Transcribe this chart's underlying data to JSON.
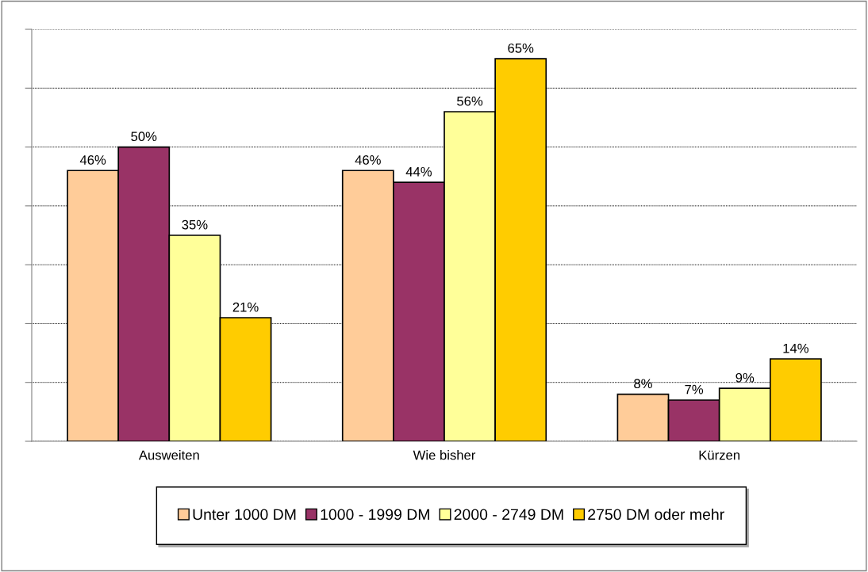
{
  "chart_data": {
    "type": "bar",
    "categories": [
      "Ausweiten",
      "Wie bisher",
      "Kürzen"
    ],
    "series": [
      {
        "name": "Unter 1000 DM",
        "color": "#ffcc99",
        "values": [
          46,
          46,
          8
        ],
        "value_labels": [
          "46%",
          "46%",
          "8%"
        ]
      },
      {
        "name": "1000 - 1999 DM",
        "color": "#993366",
        "values": [
          50,
          44,
          7
        ],
        "value_labels": [
          "50%",
          "44%",
          "7%"
        ]
      },
      {
        "name": "2000 - 2749 DM",
        "color": "#ffff99",
        "values": [
          35,
          56,
          9
        ],
        "value_labels": [
          "35%",
          "56%",
          "9%"
        ]
      },
      {
        "name": "2750 DM oder mehr",
        "color": "#ffcc00",
        "values": [
          21,
          65,
          14
        ],
        "value_labels": [
          "21%",
          "65%",
          "14%"
        ]
      }
    ],
    "ylim": [
      0,
      70
    ],
    "yticks": [
      {
        "value": 0,
        "label": null
      },
      {
        "value": 10,
        "label": null
      },
      {
        "value": 20,
        "label": null
      },
      {
        "value": 30,
        "label": null
      },
      {
        "value": 40,
        "label": null
      },
      {
        "value": 50,
        "label": null
      },
      {
        "value": 60,
        "label": null
      },
      {
        "value": 70,
        "label": null
      }
    ],
    "tick_labels": "x",
    "grid": "y",
    "legend": "bottom"
  }
}
